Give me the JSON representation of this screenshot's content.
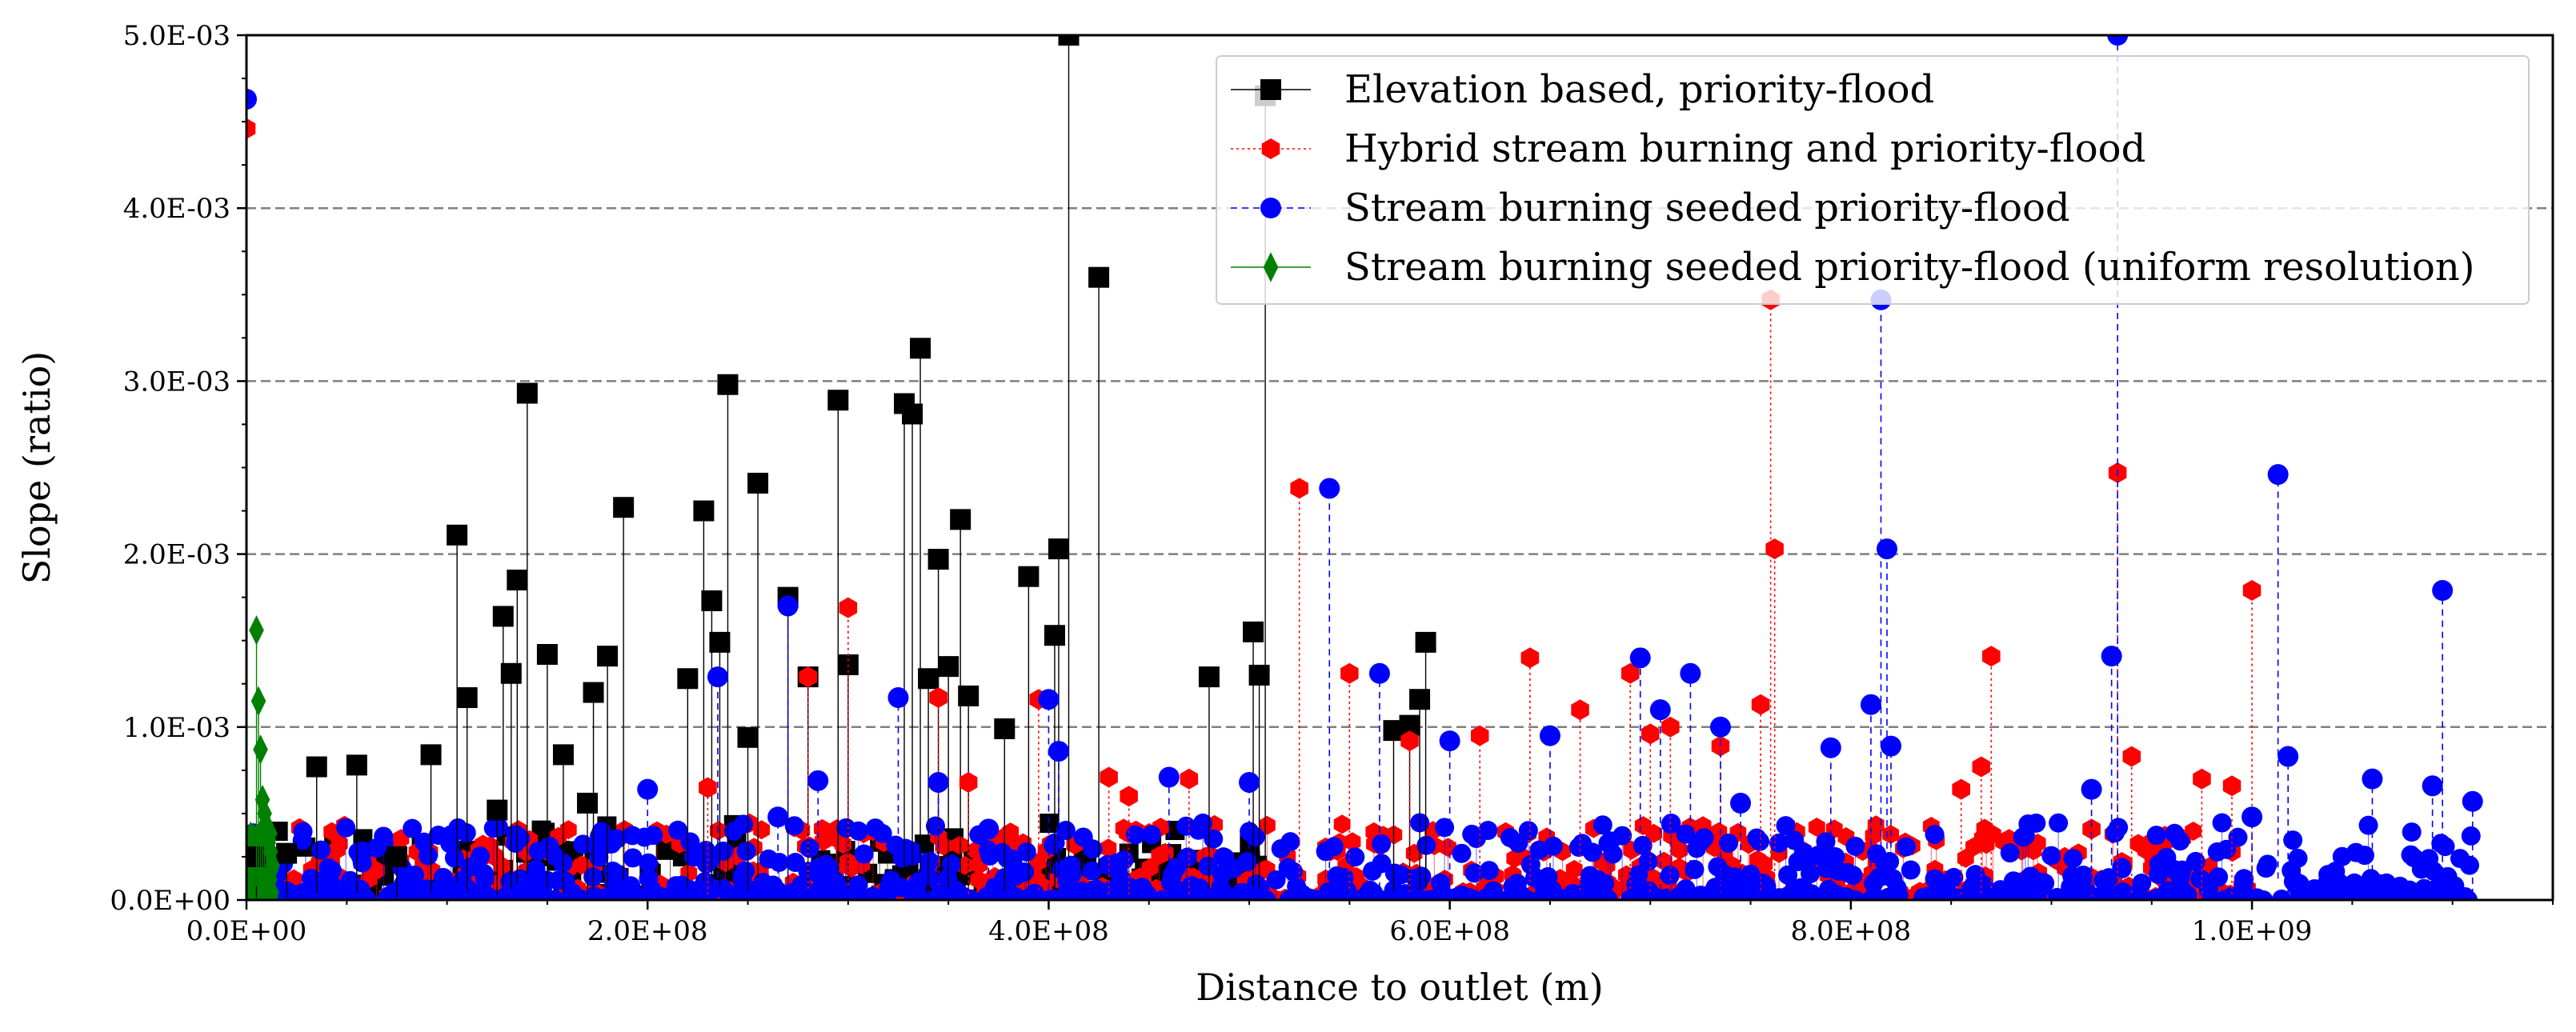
{
  "chart_data": {
    "type": "scatter",
    "xlabel": "Distance to outlet (m)",
    "ylabel": "Slope (ratio)",
    "xlim": [
      0,
      1150000000
    ],
    "ylim": [
      0,
      0.005
    ],
    "x_ticks": [
      0,
      200000000,
      400000000,
      600000000,
      800000000,
      1000000000
    ],
    "x_tick_labels": [
      "0.0E+00",
      "2.0E+08",
      "4.0E+08",
      "6.0E+08",
      "8.0E+08",
      "1.0E+09"
    ],
    "y_ticks": [
      0,
      0.001,
      0.002,
      0.003,
      0.004,
      0.005
    ],
    "y_tick_labels": [
      "0.0E+00",
      "1.0E-03",
      "2.0E-03",
      "3.0E-03",
      "4.0E-03",
      "5.0E-03"
    ],
    "grid": "horizontal dashed",
    "legend_position": "top-right",
    "series": [
      {
        "name": "Elevation based, priority-flood",
        "color": "#000000",
        "marker": "square",
        "line": "solid",
        "x": [
          5000000,
          20000000,
          35000000,
          55000000,
          75000000,
          92000000,
          105000000,
          110000000,
          125000000,
          128000000,
          132000000,
          135000000,
          140000000,
          150000000,
          158000000,
          170000000,
          173000000,
          180000000,
          188000000,
          220000000,
          228000000,
          232000000,
          236000000,
          240000000,
          250000000,
          255000000,
          270000000,
          280000000,
          295000000,
          300000000,
          328000000,
          332000000,
          336000000,
          340000000,
          345000000,
          350000000,
          356000000,
          360000000,
          378000000,
          390000000,
          403000000,
          405000000,
          410000000,
          425000000,
          480000000,
          502000000,
          505000000,
          508000000,
          572000000,
          580000000,
          585000000,
          588000000
        ],
        "y": [
          0.00025,
          0.00027,
          0.00077,
          0.00078,
          0.00025,
          0.00084,
          0.00211,
          0.00117,
          0.00052,
          0.00164,
          0.00131,
          0.00185,
          0.00293,
          0.00142,
          0.00084,
          0.00056,
          0.0012,
          0.00141,
          0.00227,
          0.00128,
          0.00225,
          0.00173,
          0.00149,
          0.00298,
          0.00094,
          0.00241,
          0.00175,
          0.00129,
          0.00289,
          0.00136,
          0.00287,
          0.00281,
          0.00319,
          0.00128,
          0.00197,
          0.00135,
          0.0022,
          0.00118,
          0.00099,
          0.00187,
          0.00153,
          0.00203,
          0.005,
          0.0036,
          0.00129,
          0.00155,
          0.0013,
          0.00465,
          0.00098,
          0.00101,
          0.00116,
          0.00149
        ]
      },
      {
        "name": "Hybrid stream burning and priority-flood",
        "color": "#ff0000",
        "marker": "hexagon",
        "line": "dotted",
        "x": [
          0,
          230000000,
          280000000,
          300000000,
          345000000,
          360000000,
          395000000,
          430000000,
          440000000,
          470000000,
          525000000,
          550000000,
          580000000,
          615000000,
          640000000,
          665000000,
          690000000,
          700000000,
          710000000,
          735000000,
          755000000,
          760000000,
          762000000,
          855000000,
          865000000,
          870000000,
          920000000,
          933000000,
          940000000,
          975000000,
          990000000,
          1000000000
        ],
        "y": [
          0.00446,
          0.00065,
          0.00129,
          0.00169,
          0.00117,
          0.00068,
          0.00116,
          0.00071,
          0.0006,
          0.0007,
          0.00238,
          0.00131,
          0.00092,
          0.00095,
          0.0014,
          0.0011,
          0.00131,
          0.00096,
          0.001,
          0.00089,
          0.00113,
          0.00347,
          0.00203,
          0.00064,
          0.00077,
          0.00141,
          0.00041,
          0.00247,
          0.00083,
          0.0007,
          0.00066,
          0.00179
        ]
      },
      {
        "name": "Stream burning seeded priority-flood",
        "color": "#0000ff",
        "marker": "circle",
        "line": "dashed",
        "x": [
          0,
          200000000,
          235000000,
          265000000,
          270000000,
          285000000,
          325000000,
          345000000,
          370000000,
          400000000,
          405000000,
          460000000,
          500000000,
          540000000,
          565000000,
          600000000,
          650000000,
          695000000,
          705000000,
          720000000,
          735000000,
          745000000,
          790000000,
          810000000,
          815000000,
          818000000,
          820000000,
          920000000,
          930000000,
          933000000,
          1000000000,
          1013000000,
          1018000000,
          1060000000,
          1090000000,
          1095000000,
          1110000000
        ],
        "y": [
          0.00463,
          0.00064,
          0.00129,
          0.00048,
          0.0017,
          0.00069,
          0.00117,
          0.00068,
          0.00041,
          0.00116,
          0.00086,
          0.00071,
          0.00068,
          0.00238,
          0.00131,
          0.00092,
          0.00095,
          0.0014,
          0.0011,
          0.00131,
          0.001,
          0.00056,
          0.00088,
          0.00113,
          0.00347,
          0.00203,
          0.00089,
          0.00064,
          0.00141,
          0.005,
          0.00048,
          0.00246,
          0.00083,
          0.0007,
          0.00066,
          0.00179,
          0.00057
        ]
      },
      {
        "name": "Stream burning seeded priority-flood (uniform resolution)",
        "color": "#008000",
        "marker": "diamond",
        "line": "solid",
        "x": [
          5000000,
          6000000,
          7000000,
          8000000,
          9000000,
          10000000,
          11000000,
          12000000,
          13000000
        ],
        "y": [
          0.00156,
          0.00115,
          0.00087,
          0.00058,
          0.0005,
          0.00043,
          0.00035,
          0.00028,
          0.0002
        ]
      }
    ]
  }
}
